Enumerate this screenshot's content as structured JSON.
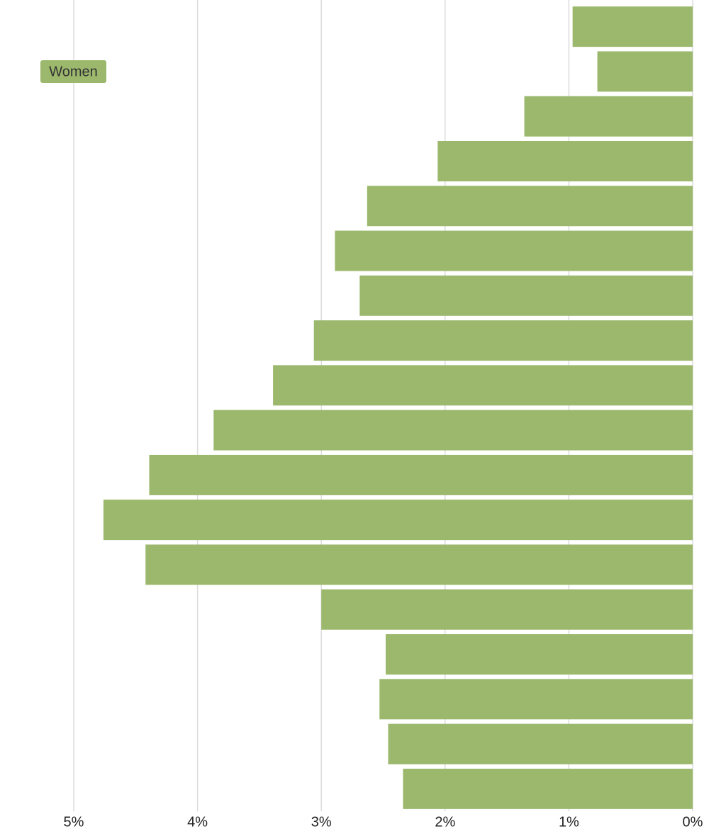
{
  "chart_data": {
    "type": "bar",
    "orientation": "horizontal",
    "categories": [
      null,
      null,
      null,
      null,
      null,
      null,
      null,
      null,
      null,
      null,
      null,
      null,
      null,
      null,
      null,
      null,
      null,
      null
    ],
    "series": [
      {
        "name": "Women",
        "color": "#9bb86c",
        "values": [
          0.97,
          0.77,
          1.36,
          2.06,
          2.63,
          2.89,
          2.69,
          3.06,
          3.39,
          3.87,
          4.39,
          4.76,
          4.42,
          3.0,
          2.48,
          2.53,
          2.46,
          2.34
        ]
      }
    ],
    "xlim": [
      5,
      0
    ],
    "xticks": [
      {
        "value": 5,
        "label": "5%"
      },
      {
        "value": 4,
        "label": "4%"
      },
      {
        "value": 3,
        "label": "3%"
      },
      {
        "value": 2,
        "label": "2%"
      },
      {
        "value": 1,
        "label": "1%"
      },
      {
        "value": 0,
        "label": "0%"
      }
    ],
    "grid": true,
    "legend": "upper left"
  }
}
